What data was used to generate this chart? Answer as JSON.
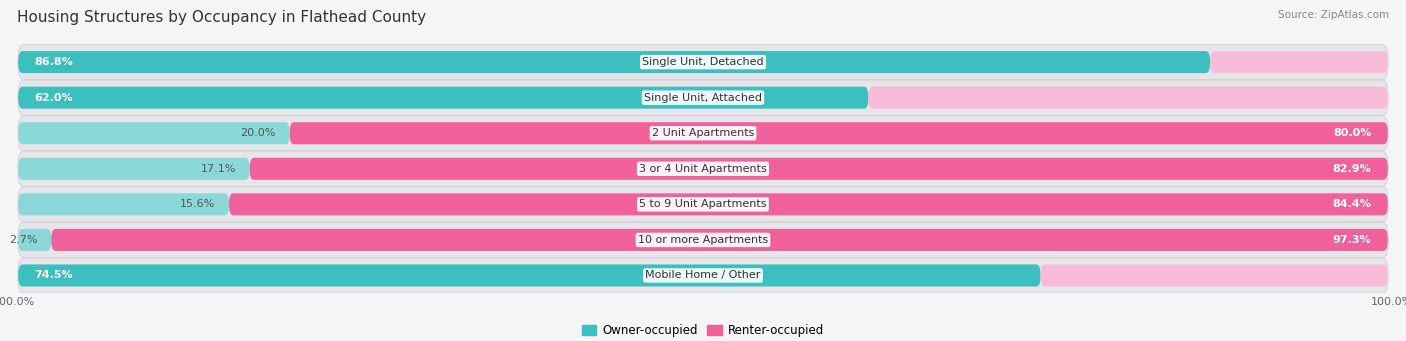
{
  "title": "Housing Structures by Occupancy in Flathead County",
  "source": "Source: ZipAtlas.com",
  "categories": [
    "Single Unit, Detached",
    "Single Unit, Attached",
    "2 Unit Apartments",
    "3 or 4 Unit Apartments",
    "5 to 9 Unit Apartments",
    "10 or more Apartments",
    "Mobile Home / Other"
  ],
  "owner_pct": [
    86.8,
    62.0,
    20.0,
    17.1,
    15.6,
    2.7,
    74.5
  ],
  "renter_pct": [
    13.2,
    38.0,
    80.0,
    82.9,
    84.4,
    97.3,
    25.5
  ],
  "owner_color_dark": "#3BBFBF",
  "owner_color_light": "#8AD8D8",
  "renter_color_dark": "#F0609A",
  "renter_color_light": "#F9BBDA",
  "row_bg_color": "#E8E8EC",
  "row_alt_bg": "#F0F0F4",
  "bg_color": "#F5F5F7",
  "title_fontsize": 11,
  "label_fontsize": 8,
  "tick_fontsize": 8,
  "legend_fontsize": 8.5,
  "source_fontsize": 7.5
}
